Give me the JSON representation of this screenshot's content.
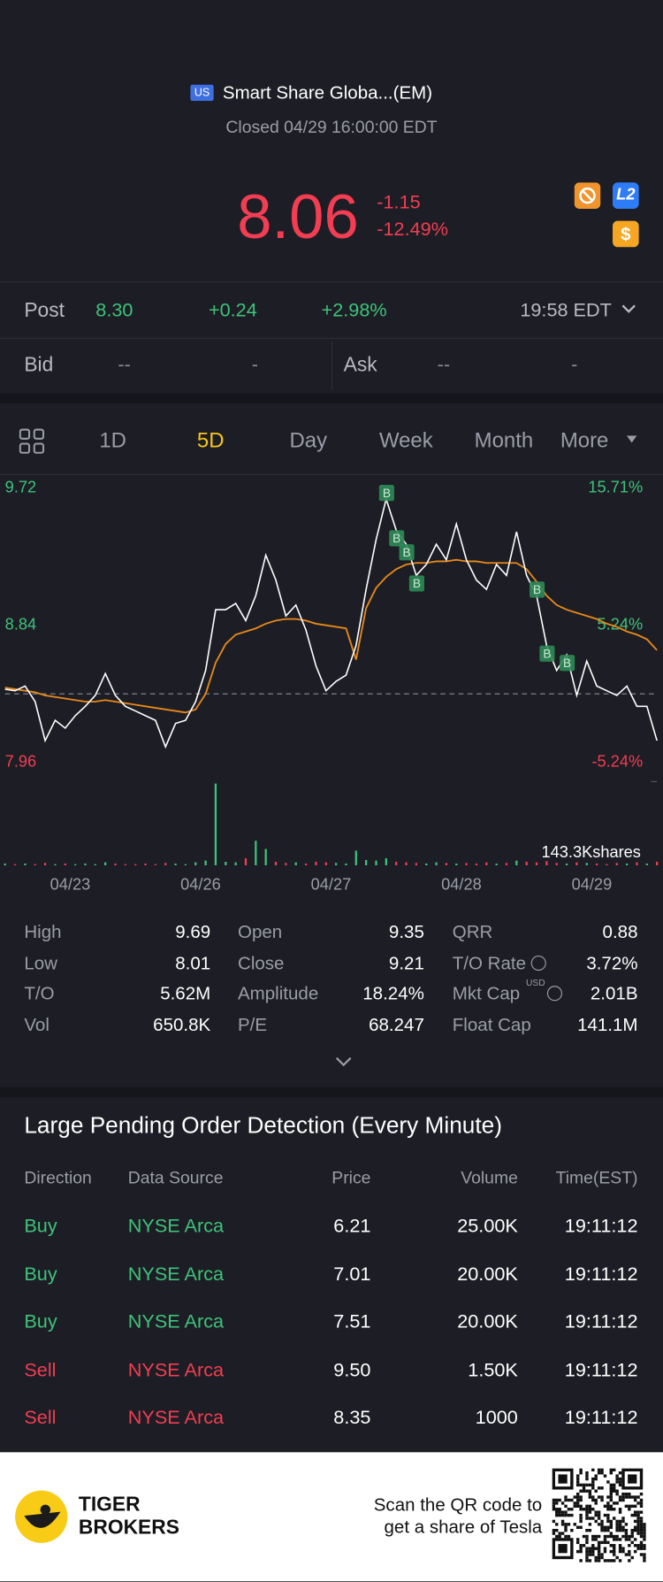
{
  "header": {
    "market_badge": "US",
    "name": "Smart Share Globa...(EM)",
    "status": "Closed 04/29 16:00:00 EDT"
  },
  "quote": {
    "price": "8.06",
    "change": "-1.15",
    "change_pct": "-12.49%",
    "color": "#f23d52",
    "badges": [
      "L2",
      "$"
    ]
  },
  "post": {
    "label": "Post",
    "price": "8.30",
    "change": "+0.24",
    "change_pct": "+2.98%",
    "time": "19:58 EDT",
    "color": "#3fc27a"
  },
  "bid_ask": {
    "bid_label": "Bid",
    "bid_price": "--",
    "bid_size": "-",
    "ask_label": "Ask",
    "ask_price": "--",
    "ask_size": "-"
  },
  "tabs": [
    "1D",
    "5D",
    "Day",
    "Week",
    "Month",
    "More"
  ],
  "active_tab": 1,
  "chart_data": {
    "type": "line",
    "days": [
      "04/23",
      "04/26",
      "04/27",
      "04/28",
      "04/29"
    ],
    "series": [
      {
        "color": "#ffffff",
        "values": [
          8.43,
          8.42,
          8.45,
          8.35,
          8.1,
          8.23,
          8.18,
          8.26,
          8.32,
          8.39,
          8.53,
          8.39,
          8.32,
          8.29,
          8.26,
          8.23,
          8.06,
          8.21,
          8.23,
          8.35,
          8.55,
          8.94,
          8.94,
          8.98,
          8.87,
          9.03,
          9.29,
          9.13,
          8.9,
          8.97,
          8.81,
          8.58,
          8.42,
          8.48,
          8.52,
          8.71,
          9.07,
          9.39,
          9.65,
          9.45,
          9.36,
          9.16,
          9.23,
          9.36,
          9.26,
          9.49,
          9.26,
          9.13,
          9.07,
          9.23,
          9.16,
          9.44,
          9.16,
          9.03,
          8.71,
          8.55,
          8.65,
          8.39,
          8.61,
          8.45,
          8.42,
          8.39,
          8.45,
          8.32,
          8.32,
          8.1
        ]
      },
      {
        "color": "#e8891a",
        "values": [
          8.44,
          8.43,
          8.42,
          8.41,
          8.39,
          8.38,
          8.37,
          8.36,
          8.35,
          8.35,
          8.36,
          8.35,
          8.34,
          8.33,
          8.32,
          8.31,
          8.3,
          8.29,
          8.28,
          8.3,
          8.4,
          8.6,
          8.72,
          8.78,
          8.8,
          8.82,
          8.85,
          8.87,
          8.88,
          8.88,
          8.87,
          8.85,
          8.84,
          8.83,
          8.82,
          8.62,
          8.95,
          9.08,
          9.15,
          9.2,
          9.23,
          9.24,
          9.24,
          9.25,
          9.25,
          9.26,
          9.25,
          9.25,
          9.24,
          9.24,
          9.24,
          9.24,
          9.2,
          9.12,
          9.03,
          8.97,
          8.94,
          8.92,
          8.9,
          8.88,
          8.85,
          8.83,
          8.8,
          8.78,
          8.75,
          8.68
        ]
      }
    ],
    "ylim": [
      7.96,
      9.72
    ],
    "yticks": [
      7.96,
      8.84,
      9.72
    ],
    "y2lim": [
      -5.24,
      15.71
    ],
    "y2ticks": [
      {
        "value": -5.24,
        "label": "-5.24%"
      },
      {
        "value": 5.24,
        "label": "5.24%"
      },
      {
        "value": 15.71,
        "label": "15.71%"
      }
    ],
    "reference_line": 8.4,
    "up_color": "#3fc27a",
    "down_color": "#f23d52",
    "markers": [
      {
        "label": "B",
        "index": 38
      },
      {
        "label": "B",
        "index": 39
      },
      {
        "label": "B",
        "index": 40
      },
      {
        "label": "B",
        "index": 41
      },
      {
        "label": "B",
        "index": 53
      },
      {
        "label": "B",
        "index": 54
      },
      {
        "label": "B",
        "index": 56
      }
    ],
    "volume": {
      "values": [
        3,
        2,
        3,
        2,
        4,
        2,
        3,
        2,
        3,
        2,
        5,
        3,
        2,
        2,
        3,
        2,
        4,
        3,
        2,
        5,
        8,
        140,
        6,
        5,
        12,
        42,
        28,
        6,
        4,
        5,
        3,
        6,
        5,
        4,
        3,
        25,
        9,
        8,
        12,
        6,
        5,
        4,
        3,
        5,
        4,
        3,
        4,
        3,
        5,
        3,
        4,
        8,
        6,
        5,
        7,
        4,
        3,
        5,
        4,
        3,
        2,
        4,
        3,
        5,
        3,
        6
      ],
      "ylim": [
        0,
        143.3
      ],
      "yticks": [
        {
          "value": 143.3,
          "label": "143.3Kshares"
        }
      ]
    }
  },
  "stats": [
    {
      "label": "High",
      "value": "9.69"
    },
    {
      "label": "Low",
      "value": "8.01"
    },
    {
      "label": "T/O",
      "value": "5.62M"
    },
    {
      "label": "Vol",
      "value": "650.8K"
    },
    {
      "label": "Open",
      "value": "9.35"
    },
    {
      "label": "Close",
      "value": "9.21"
    },
    {
      "label": "Amplitude",
      "value": "18.24%"
    },
    {
      "label": "P/E",
      "value": "68.247"
    },
    {
      "label": "QRR",
      "value": "0.88"
    },
    {
      "label": "T/O Rate",
      "value": "3.72%",
      "info": true
    },
    {
      "label": "Mkt Cap",
      "value": "2.01B",
      "info": true,
      "unit": "USD"
    },
    {
      "label": "Float Cap",
      "value": "141.1M"
    }
  ],
  "orders": {
    "title": "Large Pending Order Detection (Every Minute)",
    "columns": [
      "Direction",
      "Data Source",
      "Price",
      "Volume",
      "Time(EST)"
    ],
    "rows": [
      {
        "color": "#3fc27a",
        "cells": [
          "Buy",
          "NYSE Arca",
          "6.21",
          "25.00K",
          "19:11:12"
        ]
      },
      {
        "color": "#3fc27a",
        "cells": [
          "Buy",
          "NYSE Arca",
          "7.01",
          "20.00K",
          "19:11:12"
        ]
      },
      {
        "color": "#3fc27a",
        "cells": [
          "Buy",
          "NYSE Arca",
          "7.51",
          "20.00K",
          "19:11:12"
        ]
      },
      {
        "color": "#f23d52",
        "cells": [
          "Sell",
          "NYSE Arca",
          "9.50",
          "1.50K",
          "19:11:12"
        ]
      },
      {
        "color": "#f23d52",
        "cells": [
          "Sell",
          "NYSE Arca",
          "8.35",
          "1000",
          "19:11:12"
        ]
      }
    ]
  },
  "footer": {
    "brand": [
      "TIGER",
      "BROKERS"
    ],
    "cta": [
      "Scan the QR code to",
      "get a share of Tesla"
    ]
  }
}
